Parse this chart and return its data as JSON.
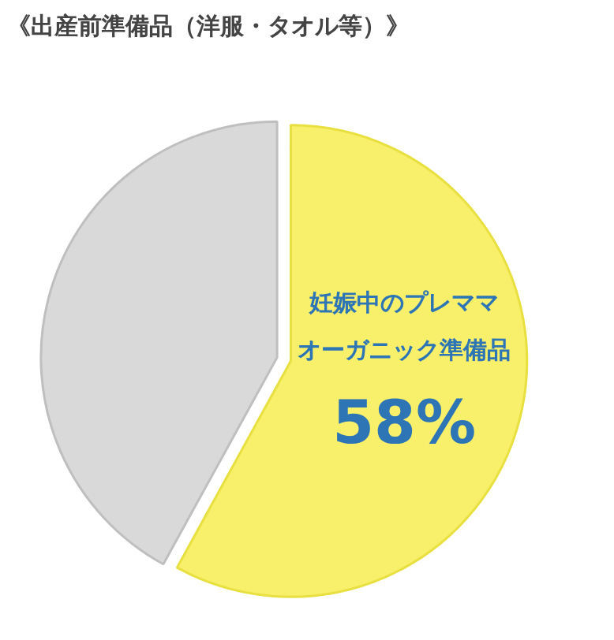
{
  "chart_data": {
    "type": "pie",
    "title": "《出産前準備品（洋服・タオル等）》",
    "categories": [
      "妊娠中のプレママオーガニック準備品",
      null
    ],
    "values": [
      58,
      42
    ],
    "colors": [
      "#f8f06a",
      "#d9d9d9"
    ],
    "value_labels": [
      "58%",
      null
    ],
    "legend": false
  }
}
